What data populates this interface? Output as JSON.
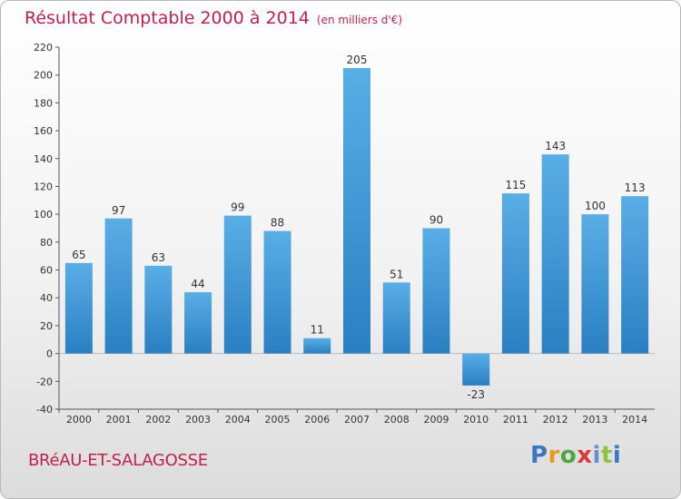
{
  "title": "Résultat Comptable 2000 à 2014",
  "title_unit": "(en milliers d'€)",
  "town": "BRéAU-ET-SALAGOSSE",
  "logo": {
    "letters": [
      "P",
      "r",
      "o",
      "x",
      "i",
      "t",
      "i"
    ]
  },
  "colors": {
    "title": "#c0204e",
    "bar_light": "#5aaee6",
    "bar_dark": "#2a7fc2"
  },
  "chart_data": {
    "type": "bar",
    "categories": [
      "2000",
      "2001",
      "2002",
      "2003",
      "2004",
      "2005",
      "2006",
      "2007",
      "2008",
      "2009",
      "2010",
      "2011",
      "2012",
      "2013",
      "2014"
    ],
    "values": [
      65,
      97,
      63,
      44,
      99,
      88,
      11,
      205,
      51,
      90,
      -23,
      115,
      143,
      100,
      113
    ],
    "value_labels": [
      "65",
      "97",
      "63",
      "44",
      "99",
      "88",
      "11",
      "205",
      "51",
      "90",
      "-23",
      "115",
      "143",
      "100",
      "113"
    ],
    "yticks": [
      "-40",
      "-20",
      "0",
      "20",
      "40",
      "60",
      "80",
      "100",
      "120",
      "140",
      "160",
      "180",
      "200",
      "220"
    ],
    "ylim": [
      -40,
      220
    ],
    "grid": false
  }
}
